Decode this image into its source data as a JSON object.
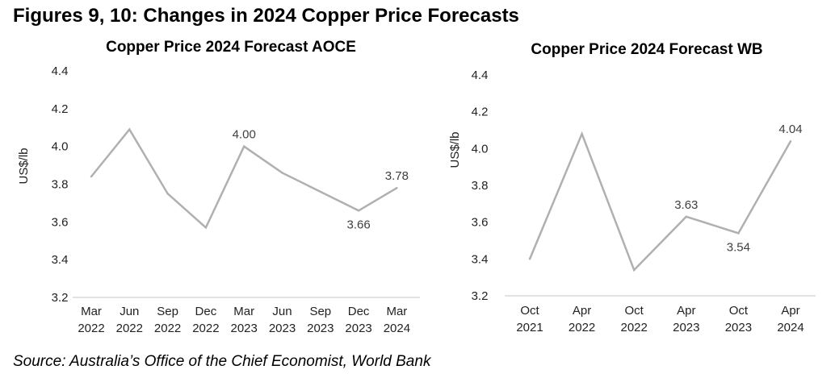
{
  "figure_title": "Figures 9, 10: Changes in 2024 Copper Price Forecasts",
  "source": "Source: Australia’s Office of the Chief Economist, World Bank",
  "chart_data": [
    {
      "type": "line",
      "title": "Copper Price 2024 Forecast AOCE",
      "xlabel": "",
      "ylabel": "US$/lb",
      "ylim": [
        3.2,
        4.4
      ],
      "yticks": [
        "3.2",
        "3.4",
        "3.6",
        "3.8",
        "4.0",
        "4.2",
        "4.4"
      ],
      "grid": false,
      "categories": [
        [
          "Mar",
          "2022"
        ],
        [
          "Jun",
          "2022"
        ],
        [
          "Sep",
          "2022"
        ],
        [
          "Dec",
          "2022"
        ],
        [
          "Mar",
          "2023"
        ],
        [
          "Jun",
          "2023"
        ],
        [
          "Sep",
          "2023"
        ],
        [
          "Dec",
          "2023"
        ],
        [
          "Mar",
          "2024"
        ]
      ],
      "series": [
        {
          "name": "AOCE forecast",
          "color": "#b0b0b0",
          "values": [
            3.84,
            4.09,
            3.75,
            3.57,
            4.0,
            3.86,
            3.76,
            3.66,
            3.78
          ]
        }
      ],
      "data_labels": [
        {
          "index": 4,
          "text": "4.00",
          "position": "above"
        },
        {
          "index": 7,
          "text": "3.66",
          "position": "below"
        },
        {
          "index": 8,
          "text": "3.78",
          "position": "above"
        }
      ]
    },
    {
      "type": "line",
      "title": "Copper Price 2024 Forecast WB",
      "xlabel": "",
      "ylabel": "US$/lb",
      "ylim": [
        3.2,
        4.4
      ],
      "yticks": [
        "3.2",
        "3.4",
        "3.6",
        "3.8",
        "4.0",
        "4.2",
        "4.4"
      ],
      "grid": false,
      "categories": [
        [
          "Oct",
          "2021"
        ],
        [
          "Apr",
          "2022"
        ],
        [
          "Oct",
          "2022"
        ],
        [
          "Apr",
          "2023"
        ],
        [
          "Oct",
          "2023"
        ],
        [
          "Apr",
          "2024"
        ]
      ],
      "series": [
        {
          "name": "WB forecast",
          "color": "#b0b0b0",
          "values": [
            3.4,
            4.08,
            3.34,
            3.63,
            3.54,
            4.04
          ]
        }
      ],
      "data_labels": [
        {
          "index": 3,
          "text": "3.63",
          "position": "above"
        },
        {
          "index": 4,
          "text": "3.54",
          "position": "below"
        },
        {
          "index": 5,
          "text": "4.04",
          "position": "above"
        }
      ]
    }
  ]
}
